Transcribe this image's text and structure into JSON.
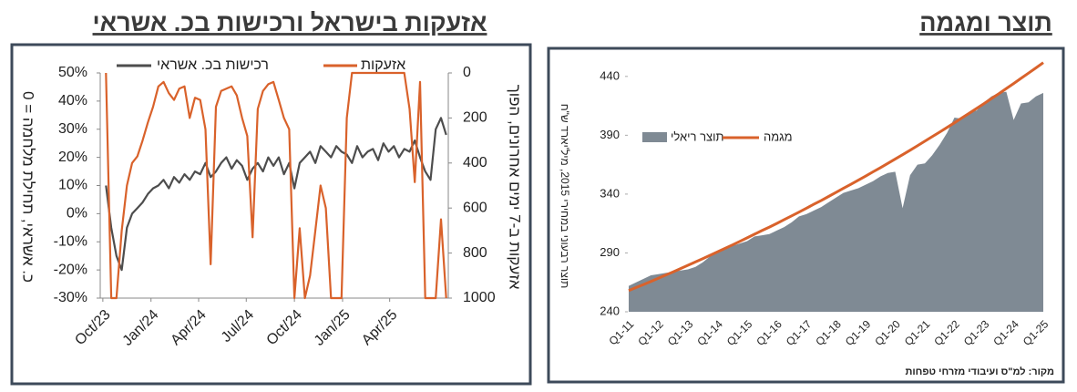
{
  "chart_data": [
    {
      "type": "line",
      "title": "אזעקות בישראל ורכישות בכ. אשראי",
      "y_label": "כ. אשראי, תחילת מלחמה = 0",
      "y2_label": "אזעקות ב-7 ימים אחרונים, הפוך",
      "x": [
        6,
        16,
        26,
        36,
        46,
        56,
        66,
        76,
        86,
        96,
        106,
        116,
        126,
        136,
        146,
        156,
        166,
        176,
        186,
        196,
        206,
        216,
        226,
        236,
        246,
        256,
        266,
        276,
        286,
        296,
        306,
        316,
        326,
        336,
        346,
        356,
        366,
        376,
        386,
        396,
        406,
        416,
        426,
        436,
        446,
        456,
        466,
        476,
        486,
        496,
        506,
        516,
        526,
        536,
        546,
        556,
        566,
        576,
        586,
        596,
        606,
        616,
        626,
        636,
        646,
        656
      ],
      "xlim": [
        -5,
        660
      ],
      "xticks": [
        {
          "value": 0,
          "label": "Oct/23"
        },
        {
          "value": 92,
          "label": "Jan/24"
        },
        {
          "value": 183,
          "label": "Apr/24"
        },
        {
          "value": 274,
          "label": "Jul/24"
        },
        {
          "value": 366,
          "label": "Oct/24"
        },
        {
          "value": 458,
          "label": "Jan/25"
        },
        {
          "value": 548,
          "label": "Apr/25"
        }
      ],
      "ylim": [
        -30,
        50
      ],
      "yticks": [
        {
          "value": -30,
          "label": "-30%"
        },
        {
          "value": -20,
          "label": "-20%"
        },
        {
          "value": -10,
          "label": "-10%"
        },
        {
          "value": 0,
          "label": "0%"
        },
        {
          "value": 10,
          "label": "10%"
        },
        {
          "value": 20,
          "label": "20%"
        },
        {
          "value": 30,
          "label": "30%"
        },
        {
          "value": 40,
          "label": "40%"
        },
        {
          "value": 50,
          "label": "50%"
        }
      ],
      "y2lim": [
        1000,
        0
      ],
      "y2ticks": [
        0,
        200,
        400,
        600,
        800,
        1000
      ],
      "series": [
        {
          "name": "רכישות בכ. אשראי",
          "color": "#4d4d4d",
          "axis": "y",
          "values": [
            10,
            -5,
            -15,
            -20,
            -5,
            0,
            2,
            4,
            7,
            9,
            10,
            12,
            9,
            13,
            11,
            14,
            12,
            15,
            14,
            18,
            13,
            15,
            18,
            20,
            16,
            19,
            17,
            12,
            16,
            18,
            15,
            20,
            17,
            20,
            14,
            18,
            9,
            18,
            20,
            22,
            18,
            24,
            22,
            20,
            24,
            22,
            21,
            18,
            24,
            20,
            22,
            23,
            19,
            25,
            22,
            24,
            20,
            23,
            22,
            26,
            20,
            15,
            12,
            30,
            34,
            28
          ]
        },
        {
          "name": "אזעקות",
          "color": "#d9622b",
          "axis": "y2",
          "values": [
            0,
            1000,
            1000,
            700,
            500,
            400,
            370,
            300,
            220,
            150,
            60,
            40,
            90,
            120,
            70,
            60,
            200,
            110,
            120,
            250,
            850,
            150,
            80,
            70,
            60,
            100,
            200,
            280,
            730,
            160,
            80,
            50,
            40,
            120,
            200,
            250,
            1000,
            690,
            1000,
            900,
            700,
            500,
            600,
            1000,
            1000,
            1000,
            200,
            0,
            0,
            0,
            0,
            0,
            0,
            0,
            0,
            0,
            0,
            0,
            160,
            485,
            40,
            1000,
            1000,
            1000,
            650,
            1000
          ]
        }
      ]
    },
    {
      "type": "area",
      "title": "תוצר ומגמה",
      "y_label": "תוצר רבעוני במחירי 2015, מיל'יארד ש\"ח",
      "source": "מקור: למ\"ס ועיבודי מזרחי טפחות",
      "categories": [
        "Q1-11",
        null,
        null,
        null,
        "Q1-12",
        null,
        null,
        null,
        "Q1-13",
        null,
        null,
        null,
        "Q1-14",
        null,
        null,
        null,
        "Q1-15",
        null,
        null,
        null,
        "Q1-16",
        null,
        null,
        null,
        "Q1-17",
        null,
        null,
        null,
        "Q1-18",
        null,
        null,
        null,
        "Q1-19",
        null,
        null,
        null,
        "Q1-20",
        null,
        null,
        null,
        "Q1-21",
        null,
        null,
        null,
        "Q1-22",
        null,
        null,
        null,
        "Q1-23",
        null,
        null,
        null,
        "Q1-24",
        null,
        null,
        null,
        "Q1-25"
      ],
      "ylim": [
        240,
        460
      ],
      "yticks": [
        240,
        290,
        340,
        390,
        440
      ],
      "series": [
        {
          "name": "תוצר ריאלי",
          "type": "area",
          "color": "#7f8a94",
          "values": [
            262,
            265,
            268,
            271,
            272,
            273,
            274,
            275,
            276,
            278,
            282,
            287,
            291,
            293,
            296,
            298,
            300,
            304,
            305,
            306,
            309,
            312,
            316,
            321,
            323,
            326,
            329,
            333,
            337,
            341,
            343,
            345,
            348,
            351,
            355,
            358,
            359,
            328,
            356,
            365,
            366,
            373,
            382,
            392,
            405,
            404,
            410,
            411,
            418,
            423,
            426,
            427,
            403,
            417,
            418,
            423,
            426
          ]
        },
        {
          "name": "מגמה",
          "type": "line",
          "color": "#d9622b",
          "values": [
            258.0,
            260.6,
            263.2,
            265.8,
            268.5,
            271.2,
            273.9,
            276.7,
            279.5,
            282.3,
            285.2,
            288.0,
            290.9,
            293.8,
            296.8,
            299.8,
            302.8,
            305.9,
            309.0,
            312.0,
            315.1,
            318.3,
            321.5,
            324.7,
            328.0,
            331.3,
            334.6,
            338.0,
            341.4,
            344.9,
            348.3,
            351.8,
            355.3,
            358.9,
            362.5,
            366.1,
            369.8,
            373.5,
            377.3,
            381.1,
            384.9,
            388.8,
            392.7,
            396.6,
            400.6,
            404.7,
            408.7,
            412.8,
            416.9,
            421.2,
            425.4,
            429.7,
            434.0,
            438.4,
            442.8,
            447.2,
            451.7
          ]
        }
      ]
    }
  ]
}
